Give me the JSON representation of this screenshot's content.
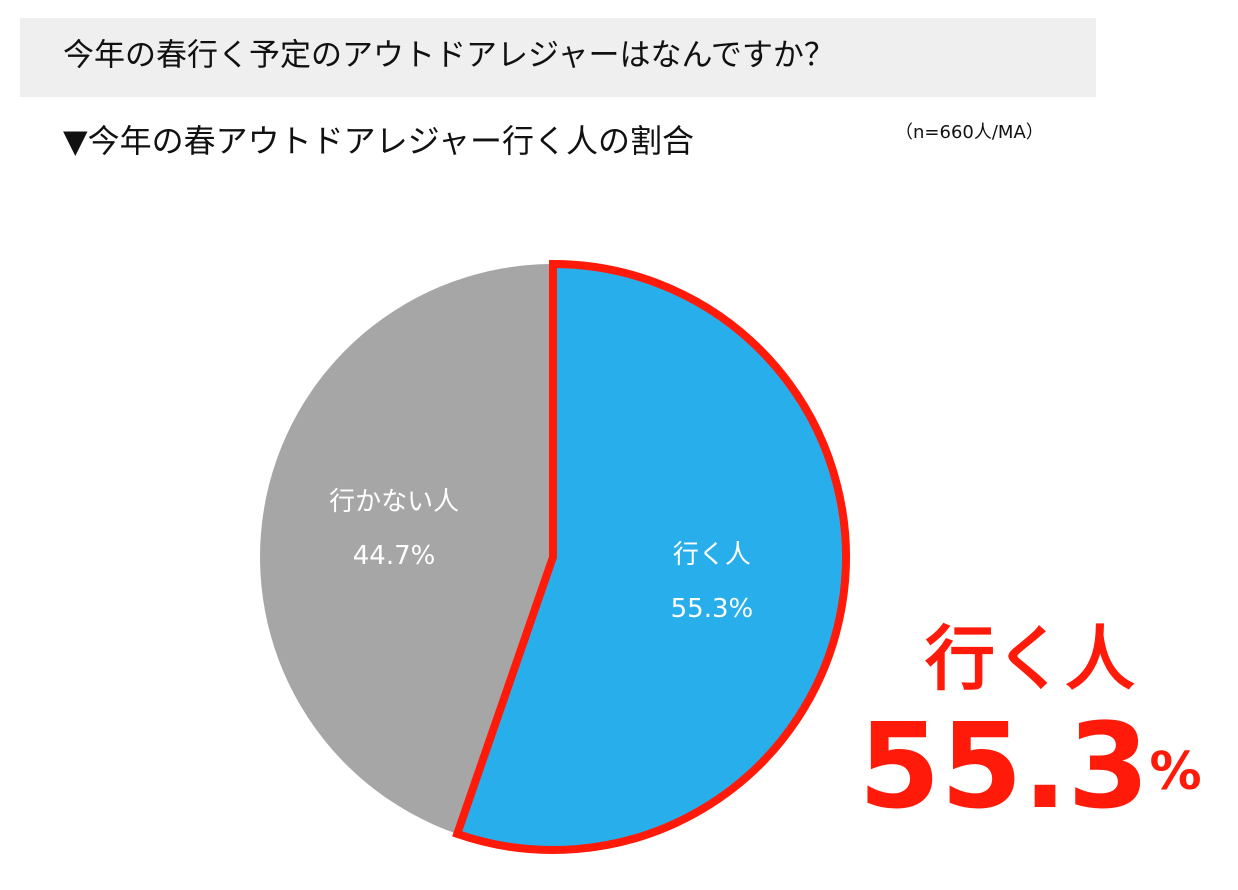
{
  "header": {
    "question": "今年の春行く予定のアウトドアレジャーはなんですか？"
  },
  "chart_data": {
    "type": "pie",
    "title": "▼今年の春アウトドアレジャー行く人の割合",
    "note": "（n=660人/MA）",
    "categories": [
      "行く人",
      "行かない人"
    ],
    "values": [
      55.3,
      44.7
    ],
    "value_labels": [
      "55.3%",
      "44.7%"
    ],
    "colors": [
      "#29aeec",
      "#a6a6a6"
    ],
    "highlight": {
      "slice": 0,
      "stroke": "#ff1a0a"
    },
    "callout": {
      "text": "行く人",
      "value": "55.3",
      "unit": "%",
      "color": "#ff1a0a"
    }
  }
}
